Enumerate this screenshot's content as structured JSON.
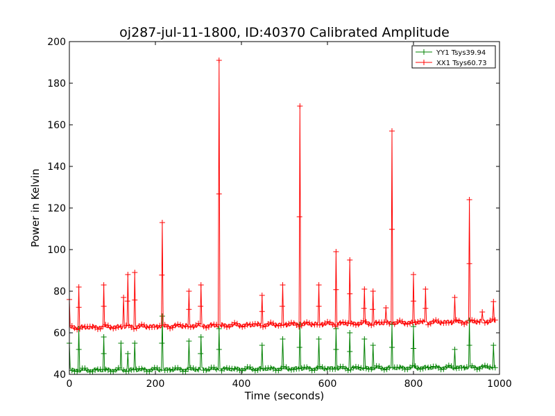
{
  "chart_data": {
    "type": "line",
    "title": "oj287-jul-11-1800, ID:40370 Calibrated Amplitude",
    "xlabel": "Time (seconds)",
    "ylabel": "Power in Kelvin",
    "xlim": [
      0,
      1000
    ],
    "ylim": [
      40,
      200
    ],
    "xticks": [
      "0",
      "200",
      "400",
      "600",
      "800",
      "1000"
    ],
    "yticks": [
      "40",
      "60",
      "80",
      "100",
      "120",
      "140",
      "160",
      "180",
      "200"
    ],
    "grid": false,
    "legend_position": "top-right",
    "marker": "+",
    "series": [
      {
        "name": "YY1 Tsys39.94",
        "color": "#008000",
        "baseline_start": 42,
        "baseline_end": 43.5,
        "baseline_wiggle": 0.7,
        "start_value": 55,
        "spikes": [
          [
            22,
            62
          ],
          [
            80,
            58
          ],
          [
            120,
            55
          ],
          [
            135,
            50
          ],
          [
            152,
            55
          ],
          [
            215,
            68
          ],
          [
            278,
            56
          ],
          [
            305,
            58
          ],
          [
            348,
            62
          ],
          [
            448,
            54
          ],
          [
            495,
            57
          ],
          [
            535,
            64
          ],
          [
            580,
            57
          ],
          [
            620,
            62
          ],
          [
            652,
            60
          ],
          [
            685,
            57
          ],
          [
            705,
            54
          ],
          [
            750,
            64
          ],
          [
            800,
            63
          ],
          [
            895,
            52
          ],
          [
            930,
            66
          ],
          [
            985,
            54
          ]
        ]
      },
      {
        "name": "XX1 Tsys60.73",
        "color": "#ff0000",
        "baseline_start": 62.5,
        "baseline_end": 65.5,
        "baseline_wiggle": 0.8,
        "start_value": 76,
        "spikes": [
          [
            22,
            82
          ],
          [
            80,
            83
          ],
          [
            125,
            77
          ],
          [
            135,
            88
          ],
          [
            152,
            89
          ],
          [
            215,
            113
          ],
          [
            278,
            80
          ],
          [
            305,
            83
          ],
          [
            348,
            191
          ],
          [
            448,
            78
          ],
          [
            495,
            83
          ],
          [
            535,
            169
          ],
          [
            580,
            83
          ],
          [
            620,
            99
          ],
          [
            652,
            95
          ],
          [
            685,
            81
          ],
          [
            705,
            80
          ],
          [
            735,
            72
          ],
          [
            750,
            157
          ],
          [
            800,
            88
          ],
          [
            828,
            81
          ],
          [
            895,
            77
          ],
          [
            930,
            124
          ],
          [
            960,
            70
          ],
          [
            985,
            75
          ]
        ]
      }
    ]
  }
}
